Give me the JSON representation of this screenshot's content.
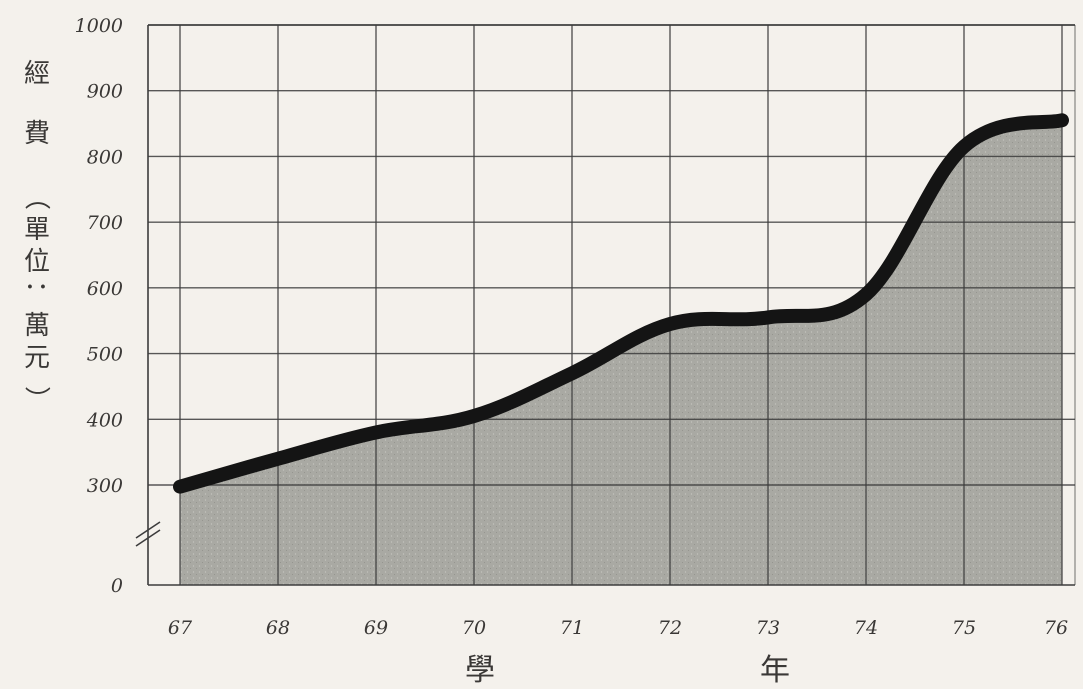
{
  "chart_data": {
    "type": "area",
    "title": "",
    "ylabel": "經費（單位：萬元）",
    "xlabel": "學　　年",
    "x": [
      67,
      68,
      69,
      70,
      71,
      72,
      73,
      74,
      75,
      76
    ],
    "x_tick_labels": [
      "67",
      "68",
      "69",
      "70",
      "71",
      "72",
      "73",
      "74",
      "75",
      "76"
    ],
    "series": [
      {
        "values": [
          295,
          340,
          380,
          405,
          470,
          545,
          555,
          590,
          815,
          855
        ]
      }
    ],
    "y_tick_labels": [
      "0",
      "300",
      "400",
      "500",
      "600",
      "700",
      "800",
      "900",
      "1000"
    ],
    "y_ticks": [
      0,
      300,
      400,
      500,
      600,
      700,
      800,
      900,
      1000
    ],
    "ylim": [
      0,
      1000
    ],
    "axis_break": "between 0 and 300",
    "grid": true,
    "colors": {
      "fill": "#a9a9a3",
      "line": "#141414",
      "grid": "#3c3c3c",
      "background": "#f4f1ec"
    }
  }
}
